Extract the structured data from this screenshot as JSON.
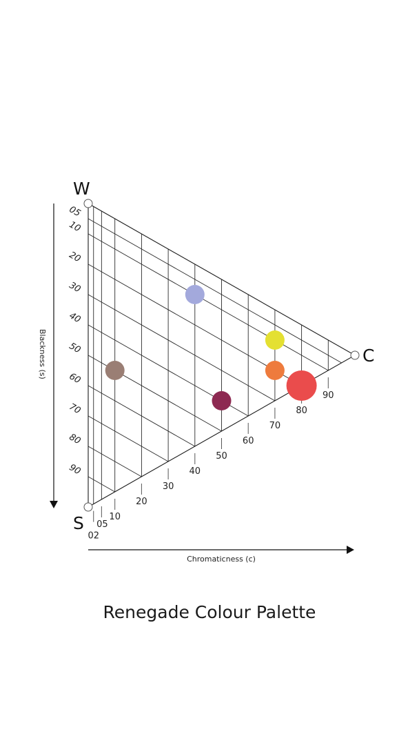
{
  "chart_data": {
    "type": "scatter",
    "title": "Renegade Colour Palette",
    "corners": {
      "white": "W",
      "chromatic": "C",
      "black": "S"
    },
    "xlabel": "Chromaticness (c)",
    "ylabel": "Blackness (s)",
    "x_ticks": [
      "02",
      "05",
      "10",
      "20",
      "30",
      "40",
      "50",
      "60",
      "70",
      "80",
      "90"
    ],
    "x_tick_values": [
      2,
      5,
      10,
      20,
      30,
      40,
      50,
      60,
      70,
      80,
      90
    ],
    "s_ticks": [
      "05",
      "10",
      "20",
      "30",
      "40",
      "50",
      "60",
      "70",
      "80",
      "90"
    ],
    "s_tick_values": [
      5,
      10,
      20,
      30,
      40,
      50,
      60,
      70,
      80,
      90
    ],
    "points": [
      {
        "c": 40,
        "s": 10,
        "color": "#a3a9dc"
      },
      {
        "c": 70,
        "s": 10,
        "color": "#e4e032"
      },
      {
        "c": 70,
        "s": 20,
        "color": "#ee7b3d"
      },
      {
        "c": 80,
        "s": 20,
        "color": "#ea4c4c",
        "large": true
      },
      {
        "c": 10,
        "s": 50,
        "color": "#9a7e74"
      },
      {
        "c": 50,
        "s": 40,
        "color": "#8d2951"
      }
    ]
  }
}
